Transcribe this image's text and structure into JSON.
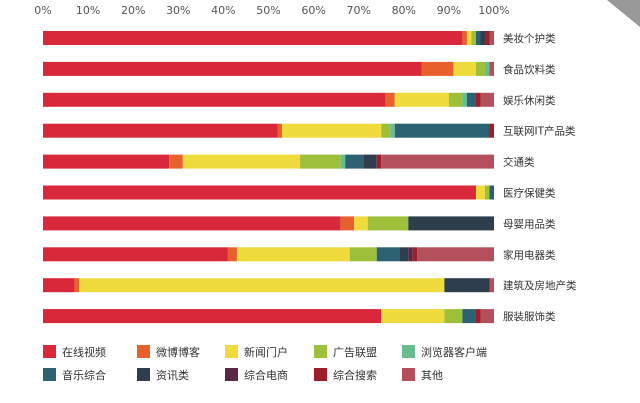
{
  "chart_data": {
    "type": "bar",
    "orientation": "horizontal",
    "stacked": true,
    "title": "",
    "xlabel": "",
    "ylabel": "",
    "xlim": [
      0,
      100
    ],
    "x_tick_labels": [
      "0%",
      "10%",
      "20%",
      "30%",
      "40%",
      "50%",
      "60%",
      "70%",
      "80%",
      "90%",
      "100%"
    ],
    "grid": false,
    "legend_position": "bottom",
    "categories": [
      "美妆个护类",
      "食品饮料类",
      "娱乐休闲类",
      "互联网IT产品类",
      "交通类",
      "医疗保健类",
      "母婴用品类",
      "家用电器类",
      "建筑及房地产类",
      "服装服饰类"
    ],
    "series": [
      {
        "name": "在线视频",
        "color": "#d9283a",
        "values": [
          93,
          84,
          76,
          52,
          28,
          96,
          66,
          41,
          7,
          75
        ]
      },
      {
        "name": "微博博客",
        "color": "#e8612c",
        "values": [
          1,
          7,
          2,
          1,
          3,
          0,
          3,
          2,
          1,
          0
        ]
      },
      {
        "name": "新闻门户",
        "color": "#efdb3c",
        "values": [
          1,
          5,
          12,
          22,
          26,
          2,
          3,
          25,
          81,
          14
        ]
      },
      {
        "name": "广告联盟",
        "color": "#9ebf3a",
        "values": [
          1,
          2,
          3,
          2,
          9,
          1,
          9,
          6,
          0,
          4
        ]
      },
      {
        "name": "浏览器客户端",
        "color": "#68bd8f",
        "values": [
          0,
          1,
          1,
          1,
          1,
          0,
          0,
          0,
          0,
          0
        ]
      },
      {
        "name": "音乐综合",
        "color": "#2d6273",
        "values": [
          1,
          0,
          2,
          21,
          4,
          1,
          0,
          5,
          0,
          3
        ]
      },
      {
        "name": "资讯类",
        "color": "#2e3e4c",
        "values": [
          1,
          0,
          0,
          0,
          3,
          0,
          19,
          2,
          10,
          0
        ]
      },
      {
        "name": "综合电商",
        "color": "#5a2a45",
        "values": [
          0,
          0,
          0,
          0,
          0,
          0,
          0,
          1,
          0,
          0
        ]
      },
      {
        "name": "综合搜索",
        "color": "#a01e2b",
        "values": [
          1,
          0,
          1,
          1,
          1,
          0,
          0,
          1,
          0,
          1
        ]
      },
      {
        "name": "其他",
        "color": "#b4505c",
        "values": [
          1,
          1,
          3,
          0,
          25,
          0,
          0,
          17,
          1,
          3
        ]
      }
    ]
  }
}
